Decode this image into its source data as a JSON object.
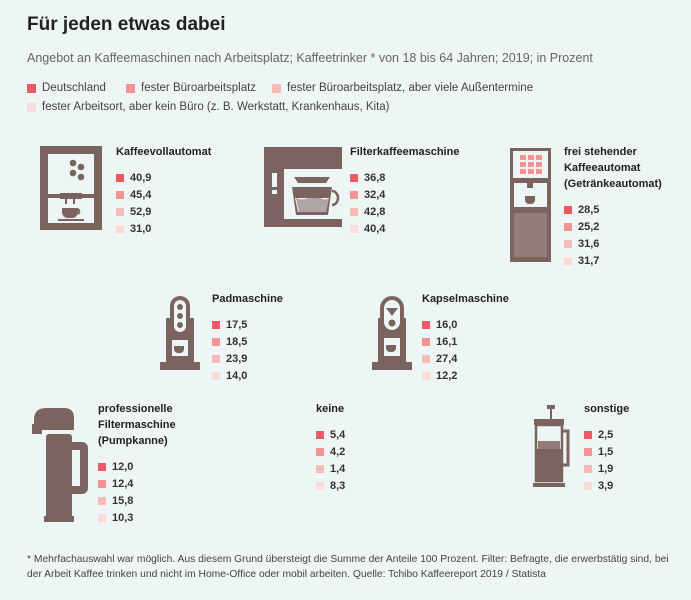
{
  "title": "Für jeden etwas dabei",
  "subtitle": "Angebot an Kaffeemaschinen nach Arbeitsplatz; Kaffeetrinker * von 18 bis 64 Jahren; 2019; in Prozent",
  "footnote": "* Mehrfachauswahl war möglich. Aus diesem Grund übersteigt die Summe der Anteile 100 Prozent. Filter: Befragte, die erwerbstätig sind, bei der Arbeit Kaffee trinken und nicht im Home-Office oder mobil arbeiten. Quelle: Tchibo Kaffeereport 2019 / Statista",
  "colors": [
    "#ee5a64",
    "#f29493",
    "#f6bcb8",
    "#fbdcda"
  ],
  "chart_data": {
    "type": "table",
    "title": "Für jeden etwas dabei",
    "series": [
      {
        "name": "Deutschland"
      },
      {
        "name": "fester Büroarbeitsplatz"
      },
      {
        "name": "fester Büroarbeitsplatz, aber viele Außentermine"
      },
      {
        "name": "fester Arbeitsort, aber kein Büro (z. B. Werkstatt, Krankenhaus, Kita)"
      }
    ],
    "groups": [
      {
        "name": "Kaffeevollautomat",
        "values": [
          "40,9",
          "45,4",
          "52,9",
          "31,0"
        ]
      },
      {
        "name": "Filterkaffeemaschine",
        "values": [
          "36,8",
          "32,4",
          "42,8",
          "40,4"
        ]
      },
      {
        "name": "frei stehender Kaffeeautomat (Getränkeautomat)",
        "lines": [
          "frei stehender",
          "Kaffeeautomat",
          "(Getränkeautomat)"
        ],
        "values": [
          "28,5",
          "25,2",
          "31,6",
          "31,7"
        ]
      },
      {
        "name": "Padmaschine",
        "values": [
          "17,5",
          "18,5",
          "23,9",
          "14,0"
        ]
      },
      {
        "name": "Kapselmaschine",
        "values": [
          "16,0",
          "16,1",
          "27,4",
          "12,2"
        ]
      },
      {
        "name": "professionelle Filtermaschine (Pumpkanne)",
        "lines": [
          "professionelle",
          "Filtermaschine",
          "(Pumpkanne)"
        ],
        "values": [
          "12,0",
          "12,4",
          "15,8",
          "10,3"
        ]
      },
      {
        "name": "keine",
        "values": [
          "5,4",
          "4,2",
          "1,4",
          "8,3"
        ]
      },
      {
        "name": "sonstige",
        "values": [
          "2,5",
          "1,5",
          "1,9",
          "3,9"
        ]
      }
    ]
  }
}
